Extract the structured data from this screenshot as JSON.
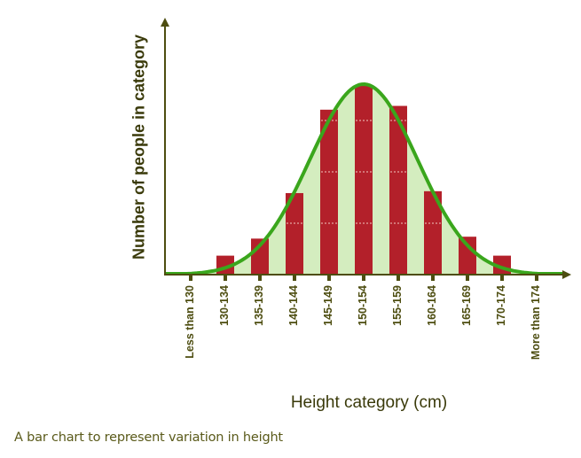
{
  "chart_data": {
    "type": "bar",
    "title": "",
    "xlabel": "Height category (cm)",
    "ylabel": "Number of people in category",
    "categories": [
      "Less than 130",
      "130-134",
      "135-139",
      "140-144",
      "145-149",
      "150-154",
      "155-159",
      "160-164",
      "165-169",
      "170-174",
      "More than 174"
    ],
    "values": [
      1,
      10,
      19,
      43,
      87,
      100,
      89,
      44,
      20,
      10,
      1
    ],
    "value_units": "relative (no y-axis scale shown; normalized to tallest bar = 100)",
    "overlay": {
      "type": "normal-curve",
      "label": "bell curve fit",
      "color": "#3aa61c",
      "fill": "#d4edbf"
    },
    "grid": false,
    "legend": null,
    "caption": "A bar chart to represent variation in height"
  },
  "labels": {
    "y_axis": "Number of people in category",
    "x_axis": "Height category (cm)",
    "caption": "A bar chart to represent variation in height"
  },
  "colors": {
    "bar": "#b3202a",
    "curve": "#3aa61c",
    "curve_fill": "#d4edbf",
    "axis": "#4d4d10",
    "text": "#3a3a0a"
  }
}
